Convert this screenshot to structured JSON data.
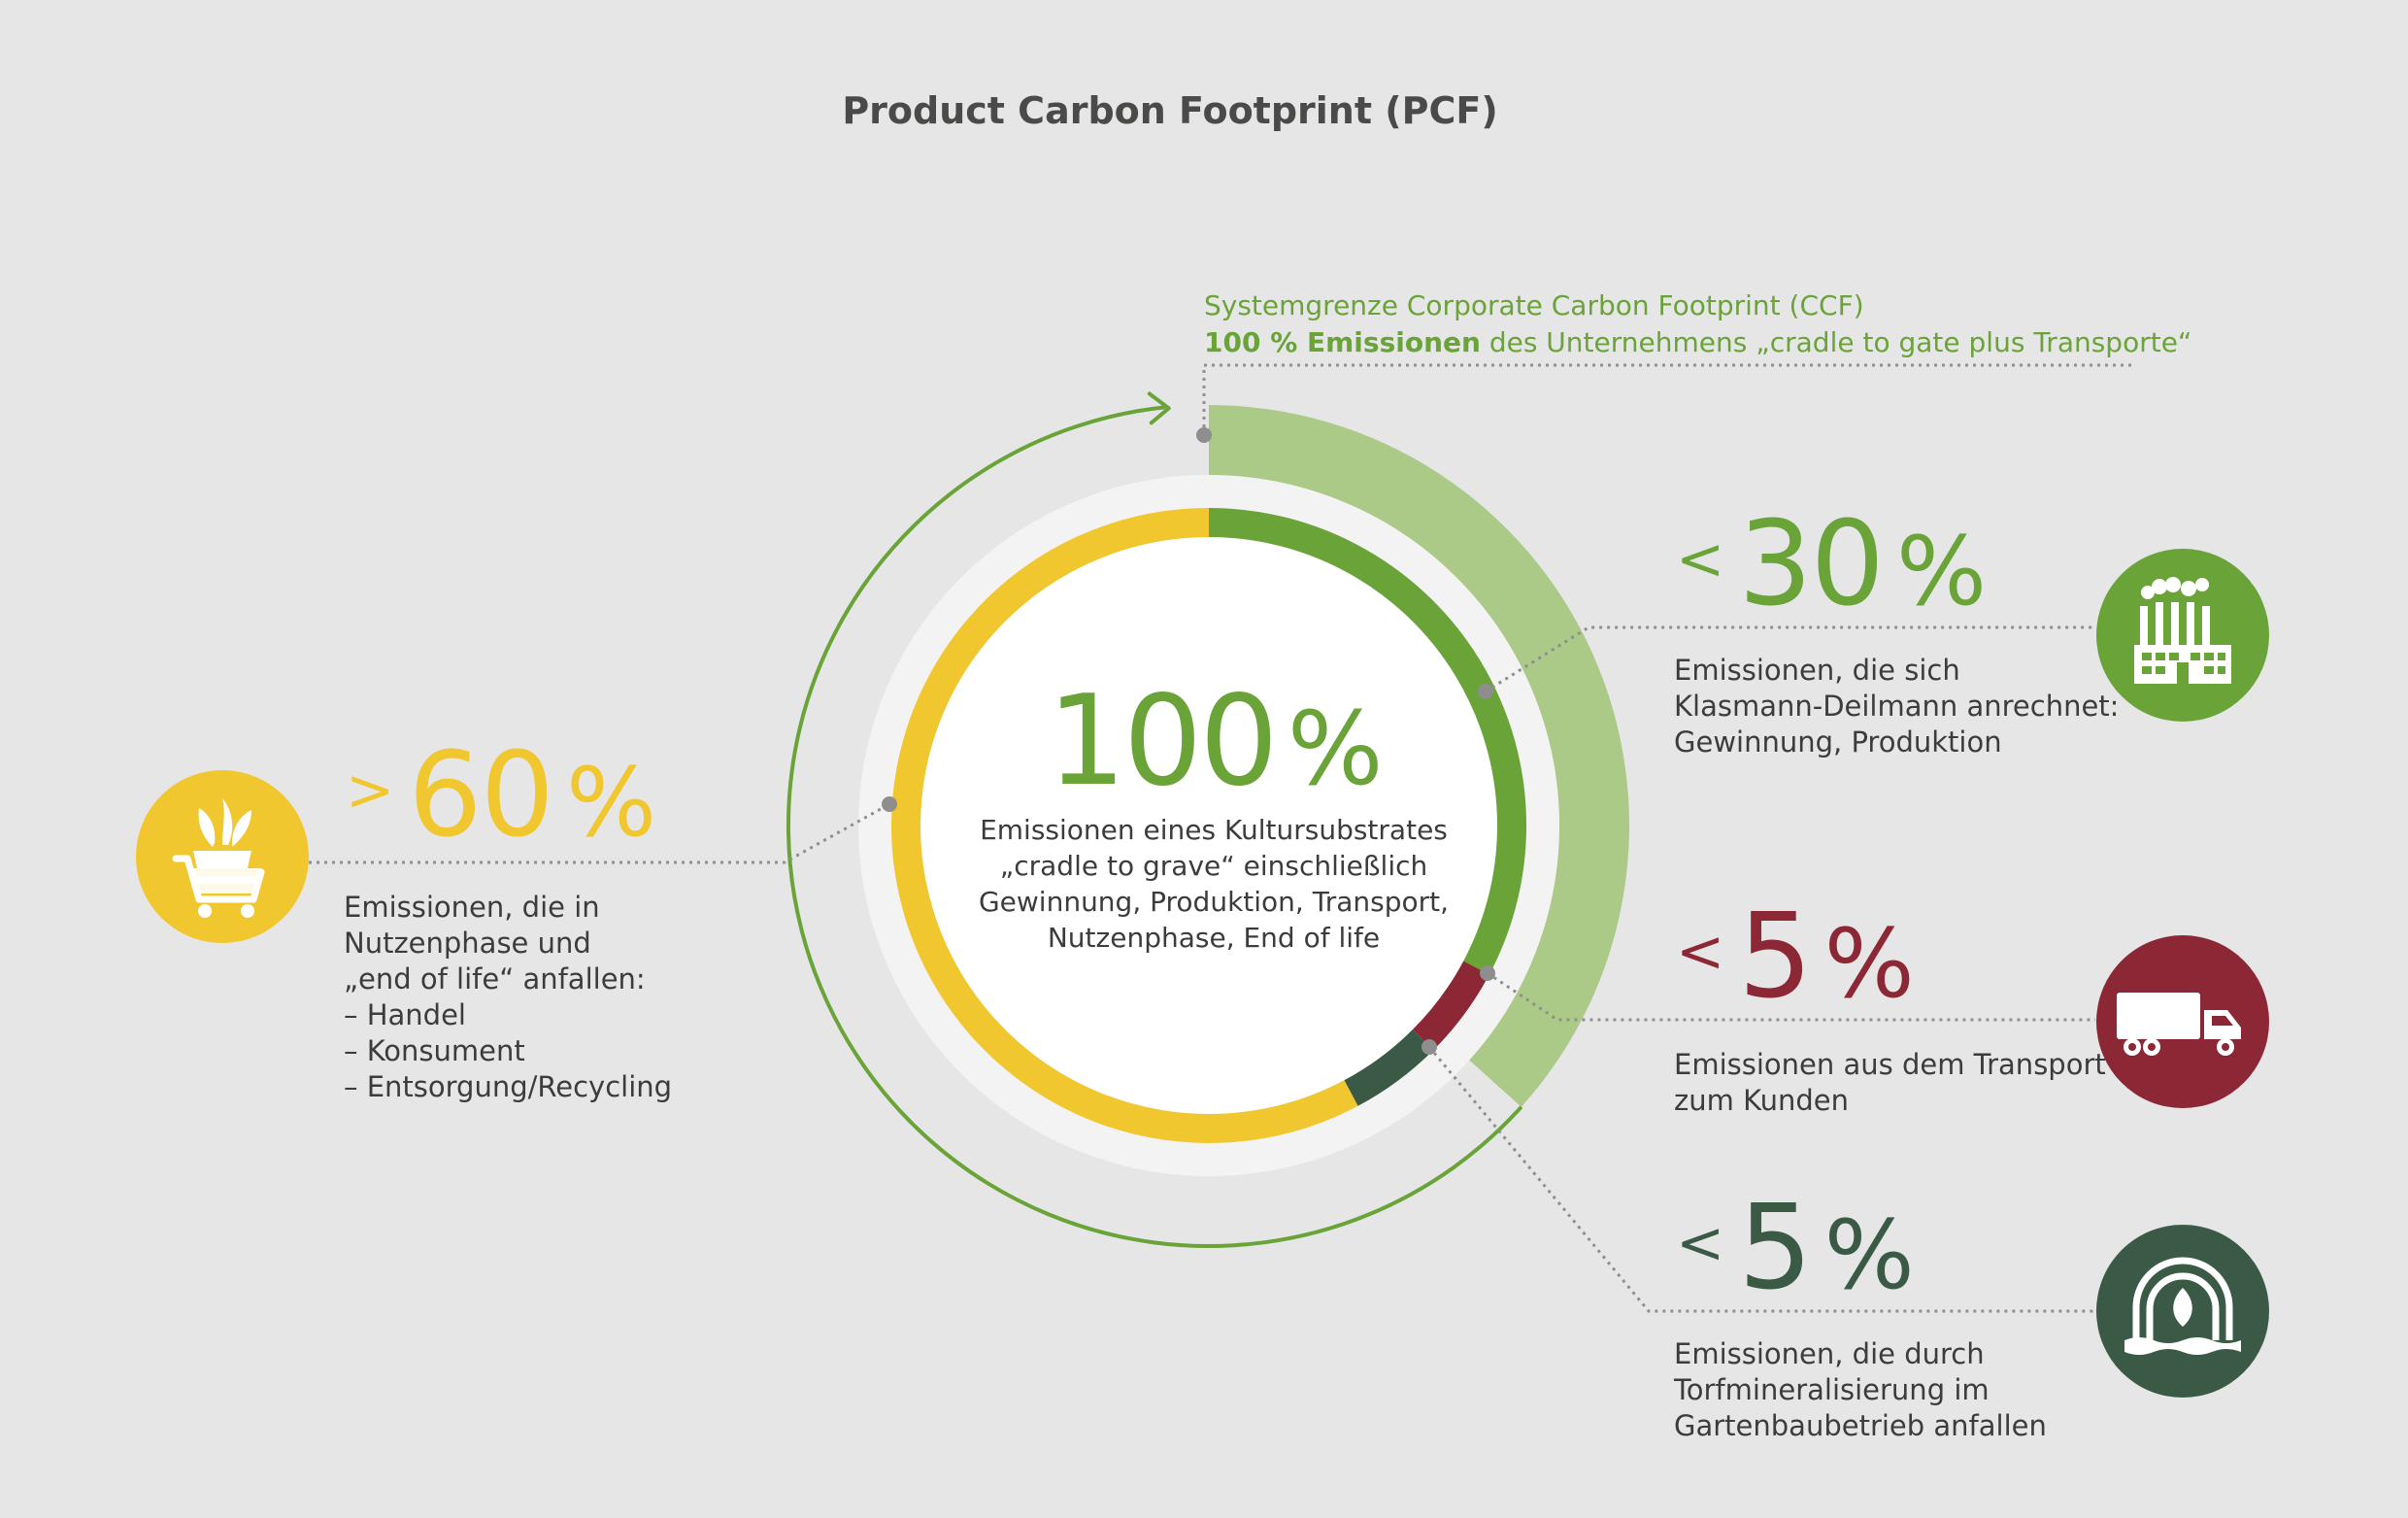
{
  "title": "Product Carbon Footprint (PCF)",
  "ccf": {
    "line1": "Systemgrenze Corporate Carbon Footprint (CCF)",
    "line2_bold": "100 % Emissionen",
    "line2_rest": " des Unternehmens „cradle to gate plus Transporte“"
  },
  "center": {
    "value": "100",
    "unit": "%",
    "lines": [
      "Emissionen eines Kultursubstrates",
      "„cradle to grave“ einschließlich",
      "Gewinnung, Produktion, Transport,",
      "Nutzenphase, End of life"
    ]
  },
  "segments": {
    "use_phase": {
      "comparator": ">",
      "value": "60",
      "unit": "%",
      "lines": [
        "Emissionen, die in",
        "Nutzenphase und",
        "„end of life“ anfallen:",
        "– Handel",
        "– Konsument",
        "– Entsorgung/Recycling"
      ],
      "color": "#f1c72f",
      "icon": "shopping-cart-plant-icon"
    },
    "production": {
      "comparator": "<",
      "value": "30",
      "unit": "%",
      "lines": [
        "Emissionen, die sich",
        "Klasmann-Deilmann anrechnet:",
        "Gewinnung, Produktion"
      ],
      "color": "#6aa338",
      "icon": "factory-icon"
    },
    "transport": {
      "comparator": "<",
      "value": "5",
      "unit": "%",
      "lines": [
        "Emissionen aus dem Transport",
        "zum Kunden"
      ],
      "color": "#8c2736",
      "icon": "truck-icon"
    },
    "mineralization": {
      "comparator": "<",
      "value": "5",
      "unit": "%",
      "lines": [
        "Emissionen, die durch",
        "Torfmineralisierung im",
        "Gartenbaubetrieb anfallen"
      ],
      "color": "#3b5a46",
      "icon": "greenhouse-icon"
    }
  },
  "colors": {
    "background": "#e6e6e7",
    "ccf_band": "#abc987",
    "ccf_band_inner": "#dbe8cb",
    "outer_ring": "#6aa338",
    "pale_ring": "#f3f3f3",
    "connector": "#8e8e8e"
  }
}
